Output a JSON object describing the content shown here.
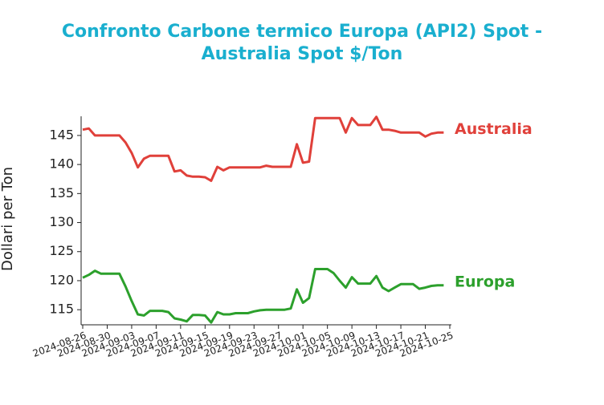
{
  "chart_data": {
    "type": "line",
    "title": "Confronto Carbone termico Europa (API2) Spot - Australia Spot $/Ton",
    "y_label": "Dollari per Ton",
    "x": [
      "2024-08-26",
      "2024-08-27",
      "2024-08-28",
      "2024-08-29",
      "2024-08-30",
      "2024-08-31",
      "2024-09-01",
      "2024-09-02",
      "2024-09-03",
      "2024-09-04",
      "2024-09-05",
      "2024-09-06",
      "2024-09-07",
      "2024-09-08",
      "2024-09-09",
      "2024-09-10",
      "2024-09-11",
      "2024-09-12",
      "2024-09-13",
      "2024-09-14",
      "2024-09-15",
      "2024-09-16",
      "2024-09-17",
      "2024-09-18",
      "2024-09-19",
      "2024-09-20",
      "2024-09-21",
      "2024-09-22",
      "2024-09-23",
      "2024-09-24",
      "2024-09-25",
      "2024-09-26",
      "2024-09-27",
      "2024-09-28",
      "2024-09-29",
      "2024-09-30",
      "2024-10-01",
      "2024-10-02",
      "2024-10-03",
      "2024-10-04",
      "2024-10-05",
      "2024-10-06",
      "2024-10-07",
      "2024-10-08",
      "2024-10-09",
      "2024-10-10",
      "2024-10-11",
      "2024-10-12",
      "2024-10-13",
      "2024-10-14",
      "2024-10-15",
      "2024-10-16",
      "2024-10-17",
      "2024-10-18",
      "2024-10-19",
      "2024-10-20",
      "2024-10-21",
      "2024-10-22",
      "2024-10-23",
      "2024-10-24"
    ],
    "series": [
      {
        "name": "Australia",
        "color": "#e0403a",
        "values": [
          146.0,
          146.2,
          145,
          145,
          145,
          145,
          145,
          143.8,
          142,
          139.5,
          141,
          141.5,
          141.5,
          141.5,
          141.5,
          138.8,
          139,
          138.1,
          137.9,
          137.9,
          137.8,
          137.2,
          139.6,
          139,
          139.5,
          139.5,
          139.5,
          139.5,
          139.5,
          139.5,
          139.8,
          139.6,
          139.6,
          139.6,
          139.6,
          143.5,
          140.3,
          140.5,
          148,
          148,
          148,
          148,
          148,
          145.5,
          148,
          146.8,
          146.8,
          146.8,
          148.2,
          146,
          146,
          145.8,
          145.5,
          145.5,
          145.5,
          145.5,
          144.8,
          145.3,
          145.5,
          145.5
        ]
      },
      {
        "name": "Europa",
        "color": "#2ca02c",
        "values": [
          120.5,
          121,
          121.7,
          121.2,
          121.2,
          121.2,
          121.2,
          119,
          116.5,
          114.2,
          114,
          114.8,
          114.8,
          114.8,
          114.6,
          113.5,
          113.3,
          113,
          114.1,
          114.1,
          114,
          112.8,
          114.6,
          114.2,
          114.2,
          114.4,
          114.4,
          114.4,
          114.7,
          114.9,
          115,
          115,
          115,
          115,
          115.2,
          118.5,
          116.2,
          117,
          122,
          122,
          122,
          121.3,
          120,
          118.8,
          120.6,
          119.5,
          119.5,
          119.5,
          120.8,
          118.8,
          118.2,
          118.8,
          119.4,
          119.4,
          119.4,
          118.6,
          118.8,
          119.1,
          119.2,
          119.2
        ]
      }
    ],
    "xlim": [
      "2024-08-26",
      "2024-10-25"
    ],
    "xticks": [
      "2024-08-26",
      "2024-08-30",
      "2024-09-03",
      "2024-09-07",
      "2024-09-11",
      "2024-09-15",
      "2024-09-19",
      "2024-09-23",
      "2024-09-27",
      "2024-10-01",
      "2024-10-05",
      "2024-10-09",
      "2024-10-13",
      "2024-10-17",
      "2024-10-21",
      "2024-10-25"
    ],
    "ylim": [
      112.4,
      148.3
    ],
    "yticks": [
      115,
      120,
      125,
      130,
      135,
      140,
      145
    ]
  }
}
